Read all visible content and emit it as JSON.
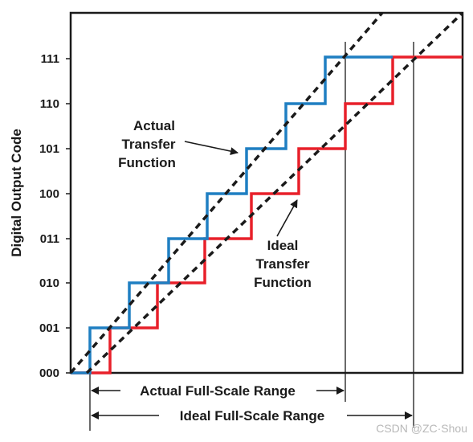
{
  "ylabel": "Digital Output Code",
  "codes": [
    "000",
    "001",
    "010",
    "011",
    "100",
    "101",
    "110",
    "111"
  ],
  "annotations": {
    "actual": [
      "Actual",
      "Transfer",
      "Function"
    ],
    "ideal": [
      "Ideal",
      "Transfer",
      "Function"
    ]
  },
  "ranges": {
    "actual": "Actual Full-Scale Range",
    "ideal": "Ideal Full-Scale Range"
  },
  "watermark": "CSDN @ZC·Shou",
  "colors": {
    "actual": "#1f7fc2",
    "ideal": "#e8202a",
    "ink": "#1a1a1a"
  }
}
